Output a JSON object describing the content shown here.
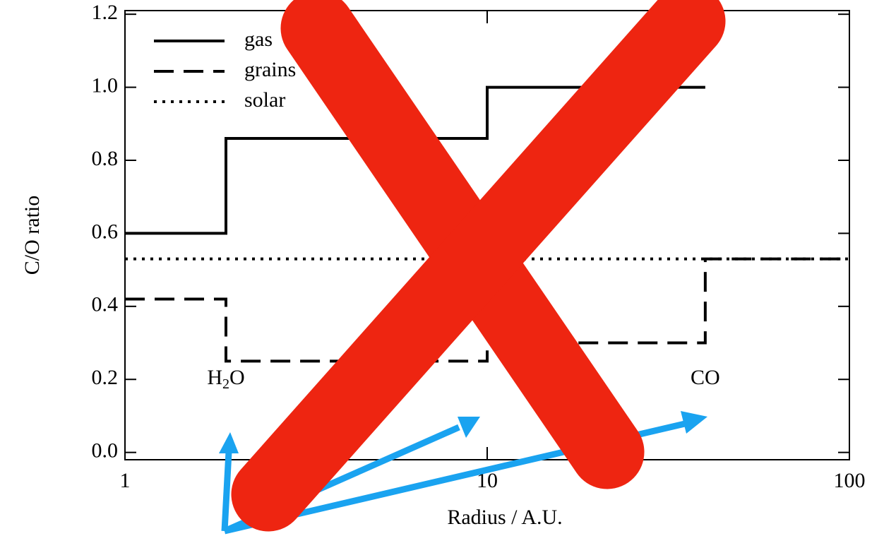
{
  "chart_data": {
    "type": "line",
    "xlabel": "Radius / A.U.",
    "ylabel": "C/O ratio",
    "log_x": true,
    "xlim": [
      1,
      100
    ],
    "xticks": [
      1,
      10,
      100
    ],
    "ylim": [
      -0.02,
      1.21
    ],
    "yticks": [
      {
        "value": 0,
        "label": "0.0"
      },
      0.2,
      0.4,
      0.6,
      0.8,
      {
        "value": 1,
        "label": "1.0"
      },
      1.2
    ],
    "legend": "upper left",
    "series": [
      {
        "name": "gas",
        "color": "#000000",
        "dash": "solid",
        "x": [
          1,
          1.9,
          1.9,
          10,
          10,
          40
        ],
        "values": [
          0.6,
          0.6,
          0.86,
          0.86,
          1.0,
          1.0
        ]
      },
      {
        "name": "grains",
        "color": "#000000",
        "dash": "dashed",
        "x": [
          1,
          1.9,
          1.9,
          10,
          10,
          40,
          40,
          100
        ],
        "values": [
          0.42,
          0.42,
          0.25,
          0.25,
          0.3,
          0.3,
          0.53,
          0.53
        ]
      },
      {
        "name": "solar",
        "color": "#000000",
        "dash": "dotted",
        "x": [
          1,
          100
        ],
        "values": [
          0.53,
          0.53
        ]
      }
    ],
    "annotations": [
      {
        "text": "H",
        "sub": "2",
        "rest": "O",
        "x": 1.9,
        "y": 0.2
      },
      {
        "text": "CO",
        "x": 40,
        "y": 0.2
      }
    ]
  }
}
